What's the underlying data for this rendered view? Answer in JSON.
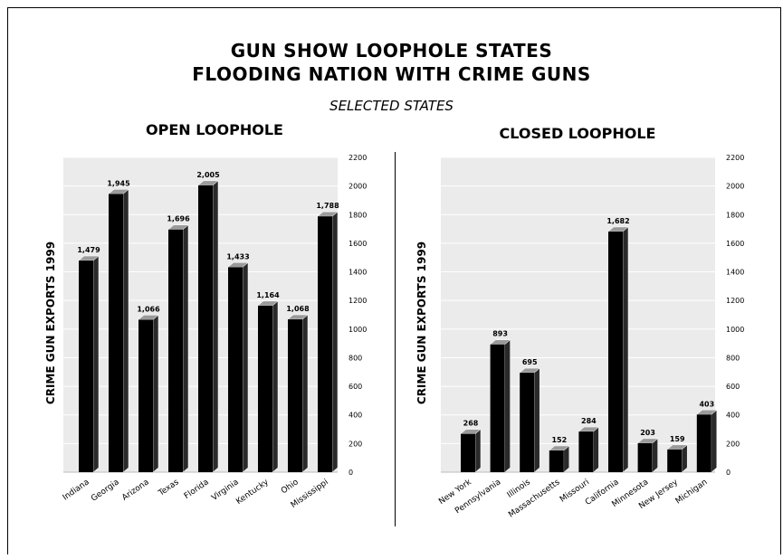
{
  "header": {
    "title_line1": "GUN SHOW LOOPHOLE STATES",
    "title_line2": "FLOODING NATION WITH CRIME GUNS",
    "subtitle": "SELECTED STATES"
  },
  "colors": {
    "plot_bg": "#ebebeb",
    "bar_front": "#000000",
    "bar_side": "#2a2a2a",
    "bar_top": "#9a9a9a"
  },
  "chart_data": [
    {
      "type": "bar",
      "title": "OPEN LOOPHOLE",
      "ylabel": "CRIME GUN EXPORTS 1999",
      "xlabel": "",
      "ylim": [
        0,
        2200
      ],
      "yticks": [
        0,
        200,
        400,
        600,
        800,
        1000,
        1200,
        1400,
        1600,
        1800,
        2000,
        2200
      ],
      "categories": [
        "Indiana",
        "Georgia",
        "Arizona",
        "Texas",
        "Florida",
        "Virginia",
        "Kentucky",
        "Ohio",
        "Mississippi"
      ],
      "values": [
        1479,
        1945,
        1066,
        1696,
        2005,
        1433,
        1164,
        1068,
        1788
      ],
      "data_labels": [
        "1,479",
        "1,945",
        "1,066",
        "1,696",
        "2,005",
        "1,433",
        "1,164",
        "1,068",
        "1,788"
      ]
    },
    {
      "type": "bar",
      "title": "CLOSED LOOPHOLE",
      "ylabel": "CRIME GUN EXPORTS 1999",
      "xlabel": "",
      "ylim": [
        0,
        2200
      ],
      "yticks": [
        0,
        200,
        400,
        600,
        800,
        1000,
        1200,
        1400,
        1600,
        1800,
        2000,
        2200
      ],
      "categories": [
        "New York",
        "Pennsylvania",
        "Illinois",
        "Massachusetts",
        "Missouri",
        "California",
        "Minnesota",
        "New Jersey",
        "Michigan"
      ],
      "values": [
        268,
        893,
        695,
        152,
        284,
        1682,
        203,
        159,
        403
      ],
      "data_labels": [
        "268",
        "893",
        "695",
        "152",
        "284",
        "1,682",
        "203",
        "159",
        "403"
      ]
    }
  ]
}
